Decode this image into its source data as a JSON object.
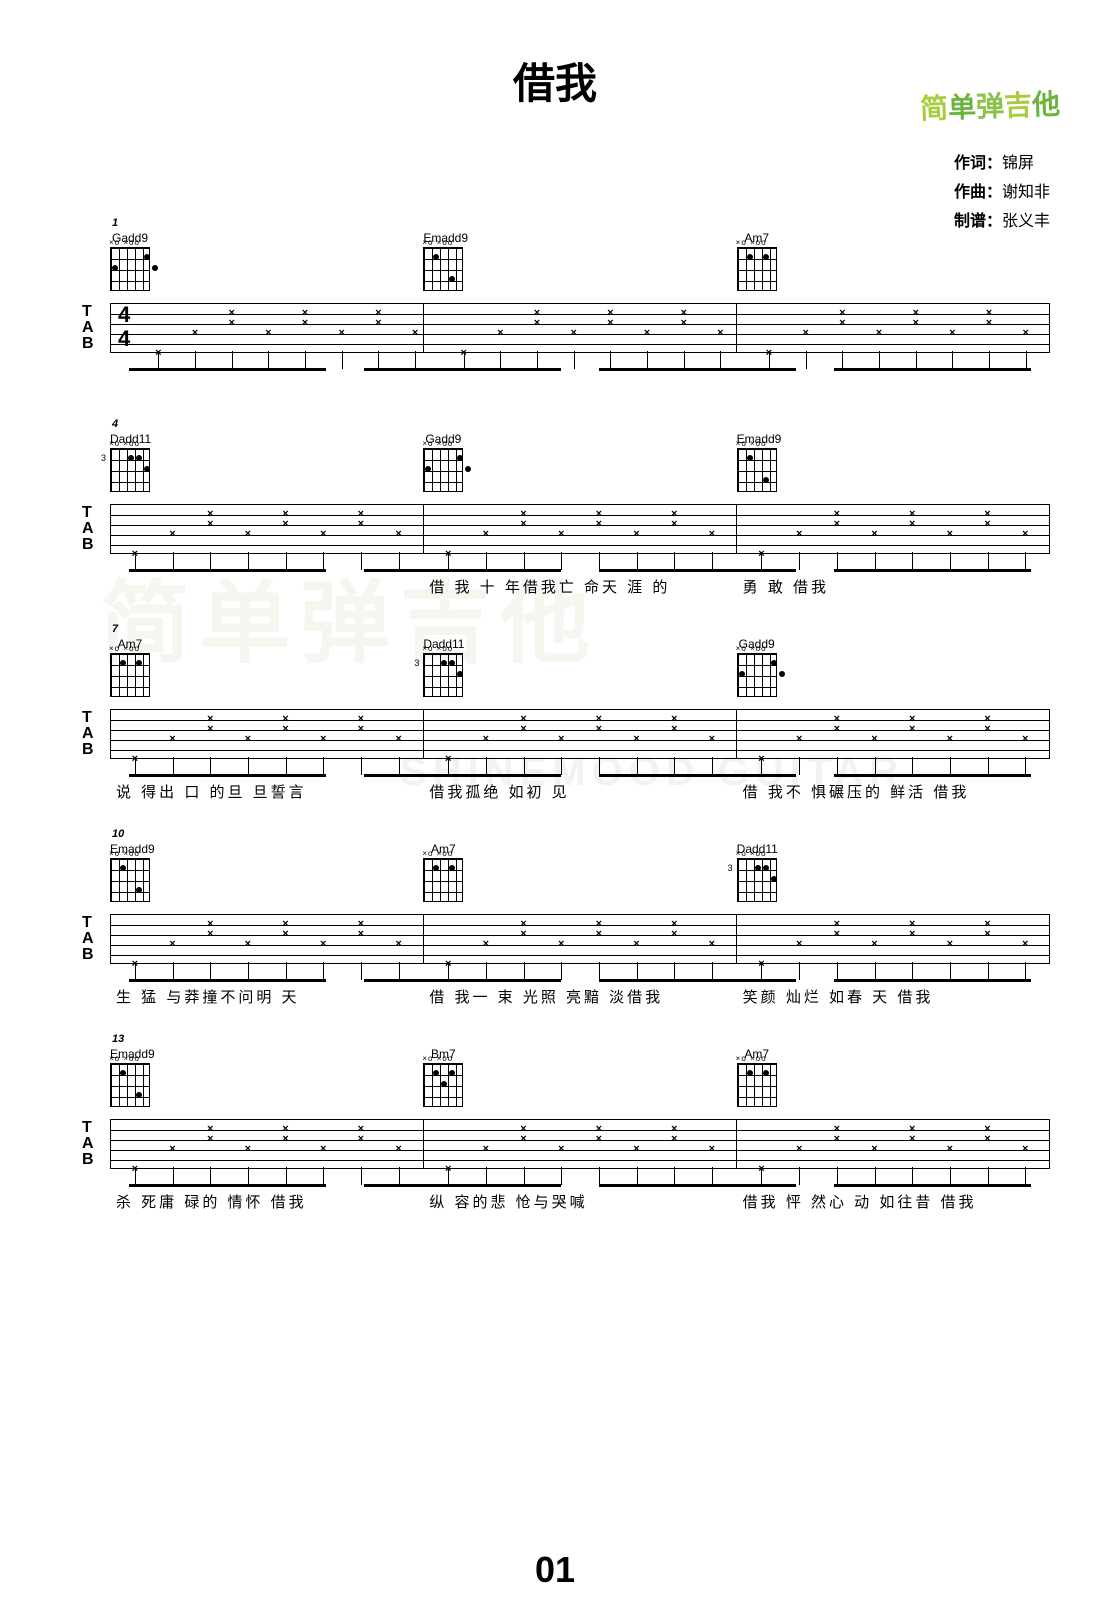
{
  "logo": {
    "c1": "简",
    "c2": "单",
    "c3": "弹",
    "c4": "吉",
    "c5": "他"
  },
  "title": "借我",
  "credits": {
    "lyric_label": "作词：",
    "lyric_name": "锦屏",
    "music_label": "作曲：",
    "music_name": "谢知非",
    "tab_label": "制谱：",
    "tab_name": "张义丰"
  },
  "timesig_top": "4",
  "timesig_bot": "4",
  "chords": {
    "Gadd9": {
      "name": "Gadd9",
      "dots": [
        {
          "s": 0,
          "f": 2
        },
        {
          "s": 4,
          "f": 1
        },
        {
          "s": 5,
          "f": 2
        }
      ]
    },
    "Emadd9": {
      "name": "Emadd9",
      "dots": [
        {
          "s": 1,
          "f": 1
        },
        {
          "s": 3,
          "f": 3
        }
      ]
    },
    "Am7": {
      "name": "Am7",
      "dots": [
        {
          "s": 1,
          "f": 1
        },
        {
          "s": 3,
          "f": 1
        }
      ]
    },
    "Dadd11": {
      "name": "Dadd11",
      "dots": [
        {
          "s": 2,
          "f": 1
        },
        {
          "s": 3,
          "f": 1
        },
        {
          "s": 4,
          "f": 2
        }
      ],
      "fret": "3"
    },
    "Bm7": {
      "name": "Bm7",
      "dots": [
        {
          "s": 1,
          "f": 1
        },
        {
          "s": 2,
          "f": 2
        },
        {
          "s": 3,
          "f": 1
        }
      ]
    }
  },
  "systems": [
    {
      "bar_num": "1",
      "has_timesig": true,
      "measures": [
        {
          "chord": "Gadd9",
          "lyric": ""
        },
        {
          "chord": "Emadd9",
          "lyric": ""
        },
        {
          "chord": "Am7",
          "lyric": ""
        }
      ]
    },
    {
      "bar_num": "4",
      "measures": [
        {
          "chord": "Dadd11",
          "lyric": ""
        },
        {
          "chord": "Gadd9",
          "lyric": "借 我 十  年借我亡  命天 涯  的"
        },
        {
          "chord": "Emadd9",
          "lyric": "勇   敢                       借我"
        }
      ]
    },
    {
      "bar_num": "7",
      "measures": [
        {
          "chord": "Am7",
          "lyric": "说 得出 口 的旦  旦誓言"
        },
        {
          "chord": "Dadd11",
          "lyric": "      借我孤绝  如初  见"
        },
        {
          "chord": "Gadd9",
          "lyric": "借 我不  惧碾压的 鲜活   借我"
        }
      ]
    },
    {
      "bar_num": "10",
      "measures": [
        {
          "chord": "Emadd9",
          "lyric": "生 猛 与莽撞不问明   天"
        },
        {
          "chord": "Am7",
          "lyric": "借 我一 束 光照 亮黯 淡借我"
        },
        {
          "chord": "Dadd11",
          "lyric": "笑颜 灿烂  如春   天     借我"
        }
      ]
    },
    {
      "bar_num": "13",
      "measures": [
        {
          "chord": "Emadd9",
          "lyric": "杀 死庸    碌的  情怀   借我"
        },
        {
          "chord": "Bm7",
          "lyric": "纵   容的悲  怆与哭喊"
        },
        {
          "chord": "Am7",
          "lyric": "借我  怦 然心  动 如往昔    借我"
        }
      ]
    }
  ],
  "page_number": "01",
  "watermark1": "简单弹吉他",
  "watermark2": "SHINEMOOD GUITAR"
}
